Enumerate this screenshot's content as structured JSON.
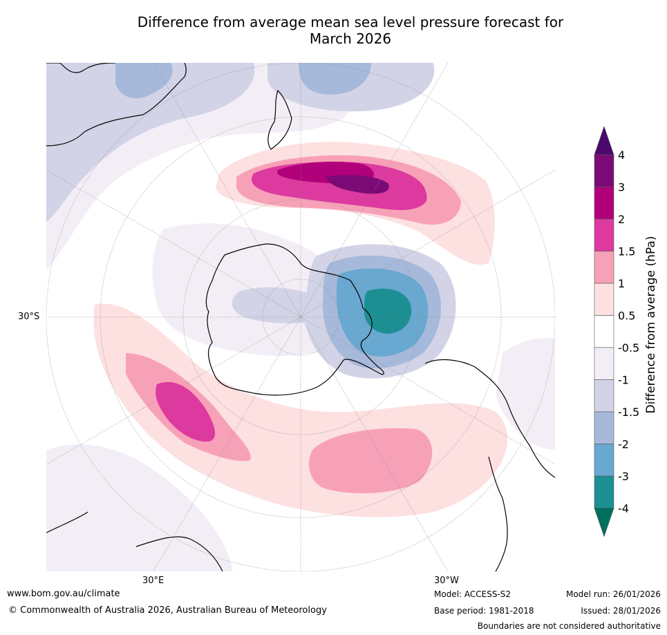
{
  "title_line1": "Difference from average mean sea level pressure forecast for",
  "title_line2": "March 2026",
  "map": {
    "lat_label": "30°S",
    "lon_label_left": "30°E",
    "lon_label_right": "30°W"
  },
  "colorbar": {
    "label": "Difference from average (hPa)",
    "ticks": [
      "4",
      "3",
      "2",
      "1.5",
      "1",
      "0.5",
      "-0.5",
      "-1",
      "-1.5",
      "-2",
      "-3",
      "-4"
    ],
    "bins": [
      {
        "range": "> 4",
        "color": "#4b0a6b"
      },
      {
        "range": "3 to 4",
        "color": "#7b0a76"
      },
      {
        "range": "2 to 3",
        "color": "#b0007a"
      },
      {
        "range": "1.5 to 2",
        "color": "#dc3a9e"
      },
      {
        "range": "1 to 1.5",
        "color": "#f7a1b8"
      },
      {
        "range": "0.5 to 1",
        "color": "#fde0e0"
      },
      {
        "range": "-0.5 to 0.5",
        "color": "#ffffff"
      },
      {
        "range": "-1 to -0.5",
        "color": "#f3eef6"
      },
      {
        "range": "-1.5 to -1",
        "color": "#d2d3e6"
      },
      {
        "range": "-2 to -1.5",
        "color": "#a7b9da"
      },
      {
        "range": "-3 to -2",
        "color": "#69a8d0"
      },
      {
        "range": "-4 to -3",
        "color": "#1c8f93"
      },
      {
        "range": "< -4",
        "color": "#00705e"
      }
    ]
  },
  "footer": {
    "website": "www.bom.gov.au/climate",
    "copyright": "© Commonwealth of Australia 2026, Australian Bureau of Meteorology",
    "model": "Model: ACCESS-S2",
    "base_period": "Base period: 1981-2018",
    "model_run": "Model run: 26/01/2026",
    "issued": "Issued: 28/01/2026",
    "disclaimer": "Boundaries are not considered authoritative"
  }
}
